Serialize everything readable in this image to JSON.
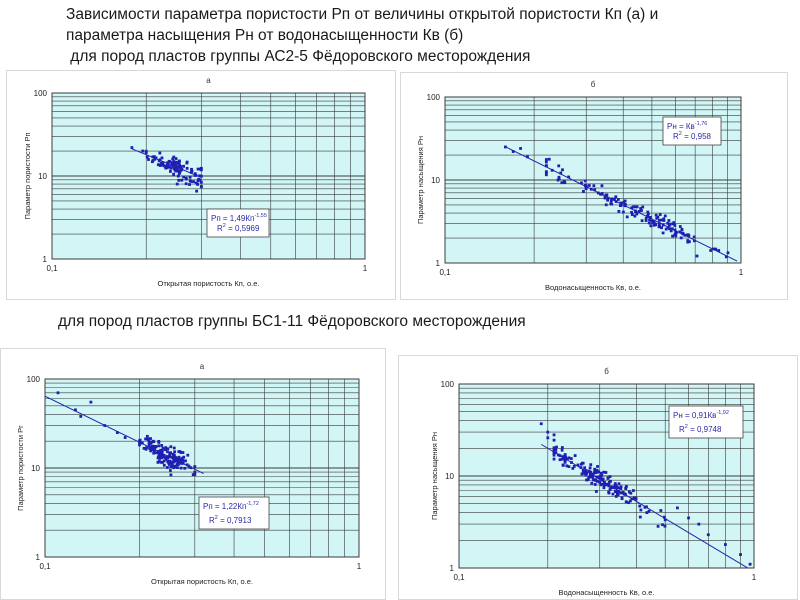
{
  "heading": {
    "line1": "Зависимости параметра пористости Рп от величины открытой пористости Кп (а) и",
    "line2": "параметра насыщения Рн от водонасыщенности Кв (б)",
    "line3": " для пород пластов группы АС2-5 Фёдоровского месторождения"
  },
  "subheading": "для пород пластов группы БС1-11 Фёдоровского месторождения",
  "chart_data": [
    {
      "id": "a1",
      "type": "scatter",
      "title": "а",
      "xlabel": "Открытая пористость Кп, о.е.",
      "ylabel": "Параметр пористости Рп",
      "xscale": "log",
      "yscale": "log",
      "xlim": [
        0.1,
        1
      ],
      "ylim": [
        1,
        100
      ],
      "xticks": [
        "0,1",
        "1"
      ],
      "yticks": [
        "1",
        "10",
        "100"
      ],
      "grid": true,
      "equation": "Рп = 1,49Кп",
      "exponent": "-1,55",
      "r2_label": "R",
      "r2_exp": "2",
      "r2_value": " = 0,5969",
      "fit": {
        "a": 1.49,
        "b": -1.55,
        "x": [
          0.18,
          0.3
        ]
      },
      "cluster": {
        "x_range": [
          0.2,
          0.3
        ],
        "center_x": 0.25,
        "count": 110,
        "spread": 0.07
      },
      "series": [
        {
          "x": [
            0.18,
            0.195,
            0.21
          ],
          "y": [
            22,
            20,
            17
          ]
        }
      ],
      "colors": {
        "bg": "#d2f6f6",
        "grid": "#3a3a3a",
        "points": "#1f1fb0",
        "line": "#2222aa",
        "text": "#2a2aa8"
      }
    },
    {
      "id": "b1",
      "type": "scatter",
      "title": "б",
      "xlabel": "Водонасыщенность Кв, о.е.",
      "ylabel": "Параметр насыщения Рн",
      "xscale": "log",
      "yscale": "log",
      "xlim": [
        0.1,
        1
      ],
      "ylim": [
        1,
        100
      ],
      "xticks": [
        "0,1",
        "1"
      ],
      "yticks": [
        "1",
        "10",
        "100"
      ],
      "grid": true,
      "equation": "Рн = Кв",
      "exponent": "-1,76",
      "r2_label": "R",
      "r2_exp": "2",
      "r2_value": " = 0,958",
      "fit": {
        "a": 1.0,
        "b": -1.76,
        "x": [
          0.16,
          0.97
        ]
      },
      "cluster": {
        "x_range": [
          0.22,
          0.95
        ],
        "center_x": 0.45,
        "count": 150,
        "spread": 0.05
      },
      "series": [
        {
          "x": [
            0.16,
            0.17,
            0.18,
            0.19
          ],
          "y": [
            25,
            22,
            24,
            19
          ]
        }
      ],
      "colors": {
        "bg": "#d2f6f6",
        "grid": "#3a3a3a",
        "points": "#1f1fb0",
        "line": "#2222aa",
        "text": "#2a2aa8"
      }
    },
    {
      "id": "a2",
      "type": "scatter",
      "title": "а",
      "xlabel": "Открытая пористость Кп, о.е.",
      "ylabel": "Параметр пористости Рг",
      "xscale": "log",
      "yscale": "log",
      "xlim": [
        0.1,
        1
      ],
      "ylim": [
        1,
        100
      ],
      "xticks": [
        "0,1",
        "1"
      ],
      "yticks": [
        "1",
        "10",
        "100"
      ],
      "grid": true,
      "equation": "Рп = 1,22Кп",
      "exponent": "-1,72",
      "r2_label": "R",
      "r2_exp": "2",
      "r2_value": " = 0,7913",
      "fit": {
        "a": 1.22,
        "b": -1.72,
        "x": [
          0.1,
          0.32
        ]
      },
      "cluster": {
        "x_range": [
          0.2,
          0.3
        ],
        "center_x": 0.245,
        "count": 160,
        "spread": 0.06
      },
      "series": [
        {
          "x": [
            0.11,
            0.125,
            0.14,
            0.13,
            0.155,
            0.17,
            0.18
          ],
          "y": [
            70,
            45,
            55,
            38,
            30,
            25,
            22
          ]
        }
      ],
      "colors": {
        "bg": "#d2f6f6",
        "grid": "#3a3a3a",
        "points": "#1f1fb0",
        "line": "#2222aa",
        "text": "#2a2aa8"
      }
    },
    {
      "id": "b2",
      "type": "scatter",
      "title": "б",
      "xlabel": "Водонасыщенность Кв, о.е.",
      "ylabel": "Параметр насыщения Рн",
      "xscale": "log",
      "yscale": "log",
      "xlim": [
        0.1,
        1
      ],
      "ylim": [
        1,
        100
      ],
      "xticks": [
        "0,1",
        "1"
      ],
      "yticks": [
        "1",
        "10",
        "100"
      ],
      "grid": true,
      "equation": "Рн = 0,91Кв",
      "exponent": "-1,92",
      "r2_label": "R",
      "r2_exp": "2",
      "r2_value": " = 0,9748",
      "fit": {
        "a": 0.91,
        "b": -1.92,
        "x": [
          0.19,
          1.0
        ]
      },
      "cluster": {
        "x_range": [
          0.21,
          0.5
        ],
        "center_x": 0.3,
        "count": 170,
        "spread": 0.06
      },
      "series": [
        {
          "x": [
            0.19,
            0.2,
            0.2,
            0.21,
            0.55,
            0.6,
            0.65,
            0.7,
            0.8,
            0.9,
            0.97
          ],
          "y": [
            37,
            30,
            26,
            28,
            4.5,
            3.5,
            3.0,
            2.3,
            1.8,
            1.4,
            1.1
          ]
        }
      ],
      "colors": {
        "bg": "#d2f6f6",
        "grid": "#3a3a3a",
        "points": "#1f1fb0",
        "line": "#2222aa",
        "text": "#2a2aa8"
      }
    }
  ]
}
